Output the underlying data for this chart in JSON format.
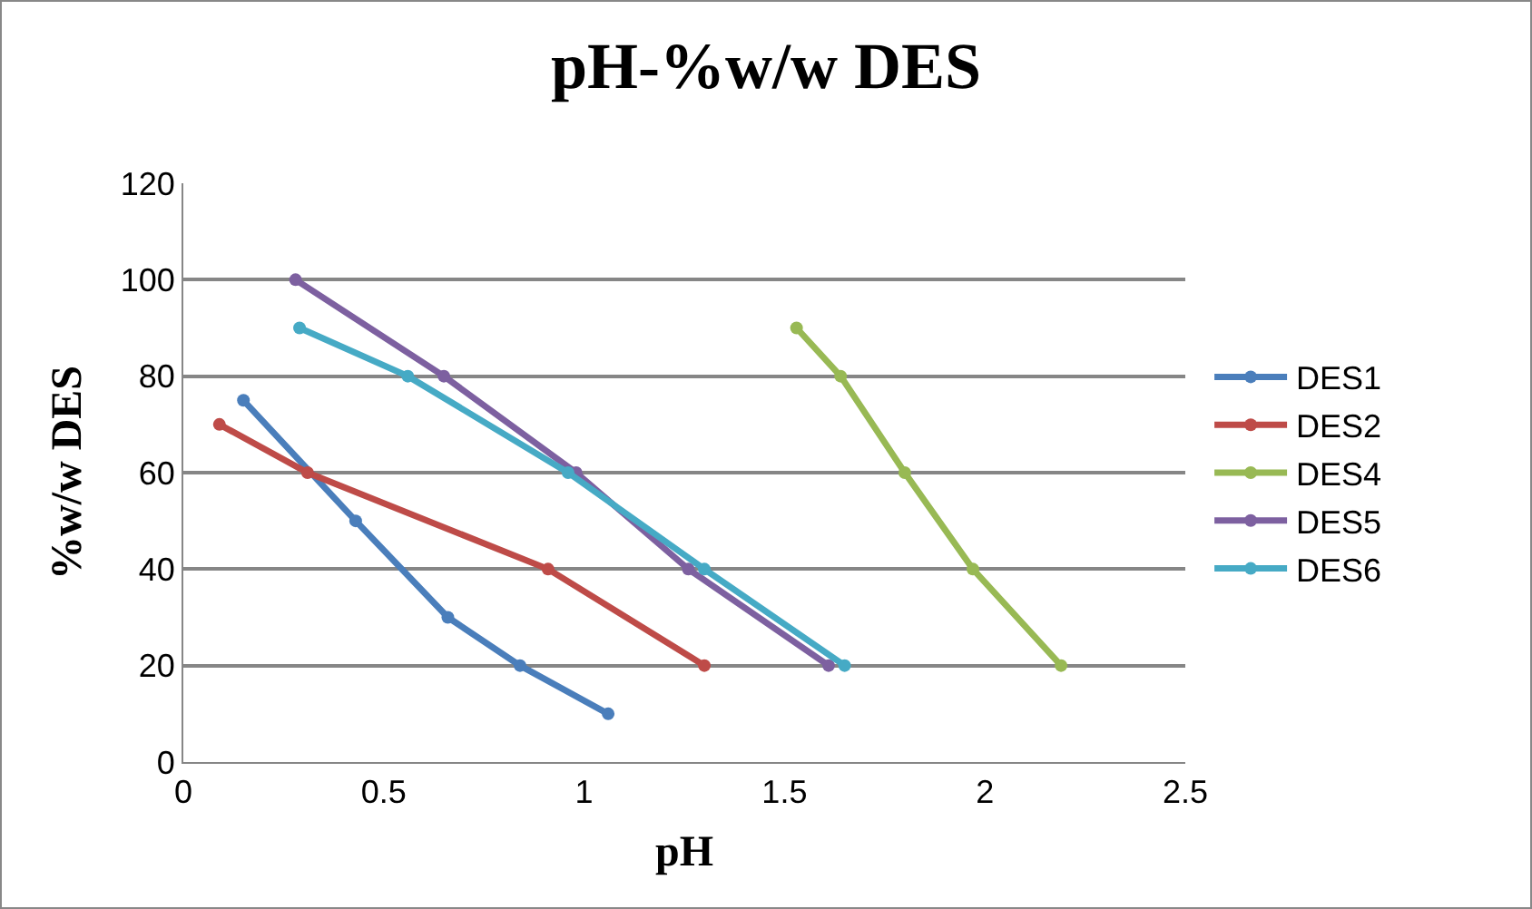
{
  "chart_data": {
    "type": "line",
    "title": "pH-%w/w DES",
    "xlabel": "pH",
    "ylabel": "%w/w DES",
    "xlim": [
      0,
      2.5
    ],
    "xticks": [
      0,
      0.5,
      1,
      1.5,
      2,
      2.5
    ],
    "ylim": [
      0,
      120
    ],
    "yticks": [
      0,
      20,
      40,
      60,
      80,
      100,
      120
    ],
    "grid": "y",
    "legend": "right",
    "marker": "circle",
    "line_style": "solid",
    "series": [
      {
        "name": "DES1",
        "color": "#4a7ebb",
        "x": [
          0.15,
          0.43,
          0.66,
          0.84,
          1.06
        ],
        "values": [
          75,
          50,
          30,
          20,
          10
        ]
      },
      {
        "name": "DES2",
        "color": "#be4b48",
        "x": [
          0.09,
          0.31,
          0.91,
          1.3
        ],
        "values": [
          70,
          60,
          40,
          20
        ]
      },
      {
        "name": "DES4",
        "color": "#98b954",
        "x": [
          1.53,
          1.64,
          1.8,
          1.97,
          2.19
        ],
        "values": [
          90,
          80,
          60,
          40,
          20
        ]
      },
      {
        "name": "DES5",
        "color": "#7d60a0",
        "x": [
          0.28,
          0.65,
          0.98,
          1.26,
          1.61
        ],
        "values": [
          100,
          80,
          60,
          40,
          20
        ]
      },
      {
        "name": "DES6",
        "color": "#46aac5",
        "x": [
          0.29,
          0.56,
          0.96,
          1.3,
          1.65
        ],
        "values": [
          90,
          80,
          60,
          40,
          20
        ]
      }
    ]
  }
}
